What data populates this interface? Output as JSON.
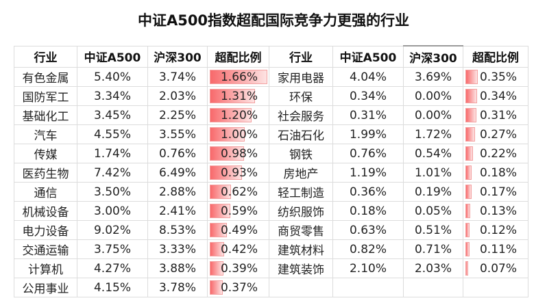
{
  "title": "中证A500指数超配国际竞争力更强的行业",
  "headers": [
    "行业",
    "中证A500",
    "沪深300",
    "超配比例"
  ],
  "bar_color": "#f8696b",
  "bar_max": 1.66,
  "left_rows": [
    [
      "有色金属",
      "5.40%",
      "3.74%",
      "1.66%"
    ],
    [
      "国防军工",
      "3.34%",
      "2.03%",
      "1.31%"
    ],
    [
      "基础化工",
      "3.45%",
      "2.25%",
      "1.20%"
    ],
    [
      "汽车",
      "4.55%",
      "3.55%",
      "1.00%"
    ],
    [
      "传媒",
      "1.74%",
      "0.76%",
      "0.98%"
    ],
    [
      "医药生物",
      "7.42%",
      "6.49%",
      "0.93%"
    ],
    [
      "通信",
      "3.50%",
      "2.88%",
      "0.62%"
    ],
    [
      "机械设备",
      "3.00%",
      "2.41%",
      "0.59%"
    ],
    [
      "电力设备",
      "9.02%",
      "8.53%",
      "0.49%"
    ],
    [
      "交通运输",
      "3.75%",
      "3.33%",
      "0.42%"
    ],
    [
      "计算机",
      "4.27%",
      "3.88%",
      "0.39%"
    ],
    [
      "公用事业",
      "4.15%",
      "3.78%",
      "0.37%"
    ]
  ],
  "right_rows": [
    [
      "家用电器",
      "4.04%",
      "3.69%",
      "0.35%"
    ],
    [
      "环保",
      "0.34%",
      "0.00%",
      "0.34%"
    ],
    [
      "社会服务",
      "0.31%",
      "0.00%",
      "0.31%"
    ],
    [
      "石油石化",
      "1.99%",
      "1.72%",
      "0.27%"
    ],
    [
      "钢铁",
      "0.76%",
      "0.54%",
      "0.22%"
    ],
    [
      "房地产",
      "1.19%",
      "1.01%",
      "0.18%"
    ],
    [
      "轻工制造",
      "0.36%",
      "0.19%",
      "0.17%"
    ],
    [
      "纺织服饰",
      "0.18%",
      "0.05%",
      "0.13%"
    ],
    [
      "商贸零售",
      "0.63%",
      "0.51%",
      "0.12%"
    ],
    [
      "建筑材料",
      "0.82%",
      "0.71%",
      "0.11%"
    ],
    [
      "建筑装饰",
      "2.10%",
      "2.03%",
      "0.07%"
    ]
  ]
}
